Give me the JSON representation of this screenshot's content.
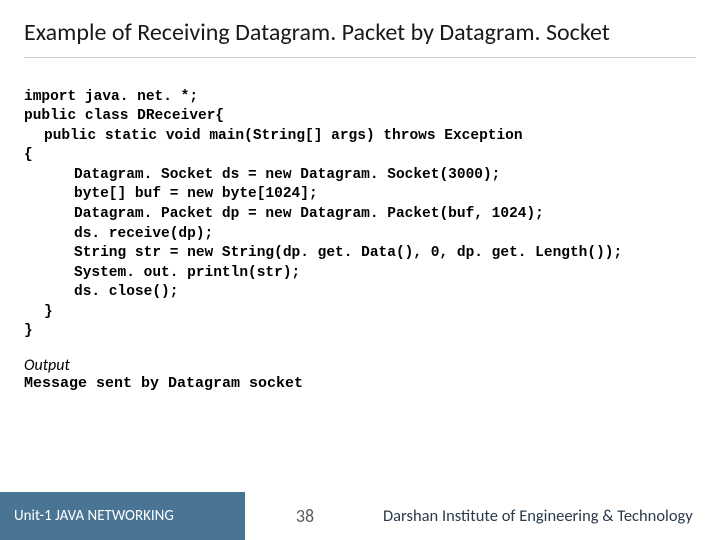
{
  "title": "Example of Receiving Datagram. Packet by Datagram. Socket",
  "code": {
    "l1": "import java. net. *;",
    "l2": "public class DReceiver{",
    "l3": "public static void main(String[] args) throws Exception",
    "l4": "{",
    "l5": "Datagram. Socket ds = new Datagram. Socket(3000);",
    "l6": "byte[] buf = new byte[1024];",
    "l7": "Datagram. Packet dp = new Datagram. Packet(buf, 1024);",
    "l8": "ds. receive(dp);",
    "l9": "String str = new String(dp. get. Data(), 0, dp. get. Length());",
    "l10": "System. out. println(str);",
    "l11": "ds. close();",
    "l12": "}",
    "l13": "}"
  },
  "outputLabel": "Output",
  "outputText": "Message sent by Datagram socket",
  "footer": {
    "unit": "Unit-1 JAVA NETWORKING",
    "page": "38",
    "org": "Darshan Institute of Engineering & Technology"
  }
}
